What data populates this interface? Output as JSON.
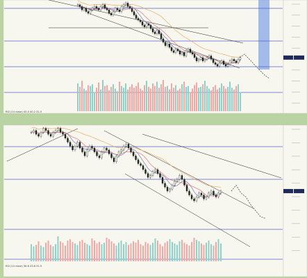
{
  "colors": {
    "background": "#f7f7ef",
    "outer": "#b9d3a3",
    "up": "#222222",
    "down": "#ffffff",
    "vol_up": "#f1a7a3",
    "vol_down": "#8ed1c8",
    "trend": "#222222",
    "hline": "#5561c9",
    "ma_red": "#d96a6a",
    "ma_orange": "#e7a24d",
    "ma_green": "#76b56f",
    "ma_purple": "#7860b8",
    "projection": "#333333",
    "price_tag": "#1f2a5a",
    "blue_box": "#3f6fe0"
  },
  "panels": [
    {
      "id": "top",
      "header_text": "",
      "indicator_label": "RSI (14 close) 43.0 40.2 31.5",
      "price_tag_label": "",
      "target_tag_label": ""
    },
    {
      "id": "bottom",
      "header_text": "",
      "indicator_label": "RSI (14 close) 36.6 43.8 31.5",
      "price_tag_label": "",
      "target_tag_label": ""
    }
  ],
  "chart_data": [
    {
      "type": "candlestick",
      "title": "",
      "candles": [
        5.0,
        4.9,
        4.7,
        4.8,
        4.6,
        4.5,
        4.7,
        4.8,
        4.9,
        4.8,
        4.7,
        4.9,
        5.0,
        4.8,
        4.7,
        4.5,
        4.4,
        4.6,
        4.8,
        4.7,
        4.6,
        4.9,
        5.0,
        5.1,
        4.9,
        4.8,
        4.6,
        4.4,
        4.2,
        4.1,
        4.0,
        3.8,
        3.7,
        3.9,
        3.8,
        3.6,
        3.4,
        3.3,
        3.5,
        3.3,
        3.0,
        2.8,
        2.6,
        2.7,
        2.5,
        2.3,
        2.2,
        2.4,
        2.3,
        2.1,
        2.2,
        2.0,
        2.3,
        2.4,
        2.2,
        2.1,
        1.9,
        1.7,
        1.8,
        1.9,
        1.7,
        1.8,
        1.9,
        2.0,
        1.8,
        1.6,
        1.5,
        1.4,
        1.6,
        1.7,
        1.5,
        1.4,
        1.5,
        1.7,
        1.8,
        1.7,
        1.6,
        1.8,
        1.9
      ],
      "volume": [
        3.2,
        2.8,
        3.5,
        2.6,
        2.4,
        3.0,
        2.9,
        3.1,
        2.2,
        2.7,
        3.3,
        2.5,
        3.6,
        2.9,
        3.0,
        2.4,
        2.8,
        3.1,
        2.6,
        2.3,
        3.4,
        2.9,
        2.7,
        3.2,
        2.5,
        2.8,
        3.1,
        2.7,
        2.9,
        3.3,
        2.6,
        2.4,
        3.0,
        3.5,
        2.8,
        2.6,
        3.2,
        2.9,
        3.4,
        2.7,
        3.1,
        3.6,
        2.8,
        2.9,
        2.5,
        3.2,
        2.7,
        3.0,
        2.4,
        2.6,
        3.1,
        3.4,
        2.8,
        2.9,
        2.2,
        2.6,
        3.0,
        3.3,
        2.7,
        2.8,
        3.1,
        3.5,
        2.9,
        2.6,
        2.4,
        2.8,
        3.0,
        2.5,
        2.7,
        3.2,
        2.9,
        2.6,
        2.8,
        3.4,
        2.7,
        2.5,
        2.9,
        3.1,
        2.2
      ],
      "projection": [
        1.9,
        2.1,
        1.8,
        1.5,
        1.2,
        0.9,
        0.7
      ]
    },
    {
      "type": "candlestick",
      "title": "",
      "candles": [
        5.2,
        5.3,
        5.1,
        5.0,
        5.2,
        5.4,
        5.3,
        5.1,
        5.0,
        5.2,
        5.3,
        5.4,
        5.2,
        5.1,
        4.9,
        4.7,
        4.5,
        4.3,
        4.5,
        4.7,
        4.4,
        4.2,
        4.0,
        4.3,
        4.5,
        4.4,
        4.2,
        4.0,
        3.9,
        4.2,
        4.4,
        4.3,
        4.1,
        3.9,
        3.7,
        4.0,
        4.2,
        4.3,
        4.5,
        4.6,
        4.4,
        4.2,
        4.0,
        3.8,
        3.6,
        3.5,
        3.3,
        3.1,
        2.9,
        3.0,
        3.2,
        3.3,
        3.1,
        2.9,
        2.6,
        2.4,
        2.2,
        2.3,
        2.5,
        2.7,
        2.8,
        3.0,
        2.8,
        2.5,
        2.2,
        2.0,
        1.8,
        1.7,
        1.9,
        2.1,
        2.0,
        1.8,
        1.9,
        2.1,
        2.2,
        2.0,
        1.9,
        2.1,
        2.2
      ],
      "volume": [
        2.4,
        2.1,
        2.3,
        2.8,
        2.2,
        2.0,
        2.6,
        2.9,
        2.3,
        2.1,
        2.4,
        3.5,
        2.8,
        2.6,
        2.2,
        2.9,
        3.1,
        2.7,
        2.5,
        2.3,
        2.8,
        3.0,
        2.6,
        2.4,
        2.2,
        3.2,
        2.9,
        2.5,
        2.7,
        2.4,
        2.6,
        3.3,
        3.1,
        2.8,
        2.5,
        2.2,
        2.6,
        2.9,
        2.4,
        2.7,
        2.3,
        2.5,
        2.8,
        2.6,
        3.0,
        2.4,
        2.2,
        2.7,
        2.5,
        2.3,
        2.6,
        3.2,
        2.9,
        2.4,
        2.1,
        2.6,
        2.8,
        3.1,
        2.7,
        2.5,
        2.3,
        2.8,
        3.0,
        2.6,
        2.4,
        2.2,
        2.7,
        3.3,
        3.0,
        2.8,
        2.5,
        2.3,
        2.6,
        2.9,
        2.4,
        2.2,
        2.7,
        3.1,
        2.5
      ],
      "projection": [
        2.2,
        2.5,
        2.1,
        1.9,
        1.5,
        1.2,
        0.9,
        0.8
      ]
    }
  ]
}
